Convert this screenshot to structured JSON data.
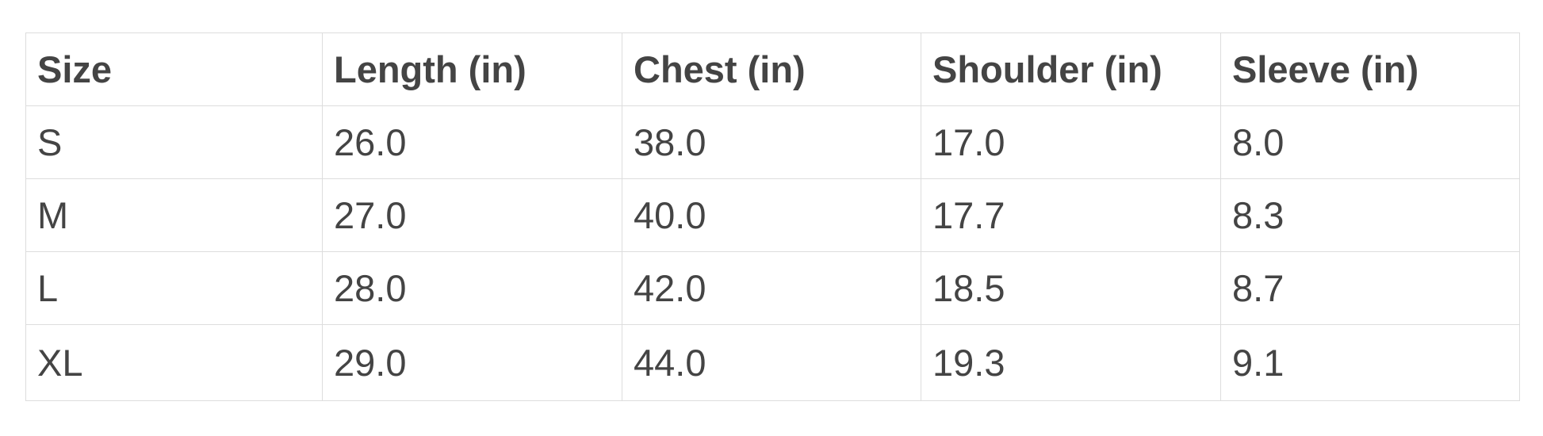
{
  "table": {
    "headers": [
      "Size",
      "Length (in)",
      "Chest (in)",
      "Shoulder (in)",
      "Sleeve (in)"
    ],
    "rows": [
      [
        "S",
        "26.0",
        "38.0",
        "17.0",
        "8.0"
      ],
      [
        "M",
        "27.0",
        "40.0",
        "17.7",
        "8.3"
      ],
      [
        "L",
        "28.0",
        "42.0",
        "18.5",
        "8.7"
      ],
      [
        "XL",
        "29.0",
        "44.0",
        "19.3",
        "9.1"
      ]
    ]
  }
}
